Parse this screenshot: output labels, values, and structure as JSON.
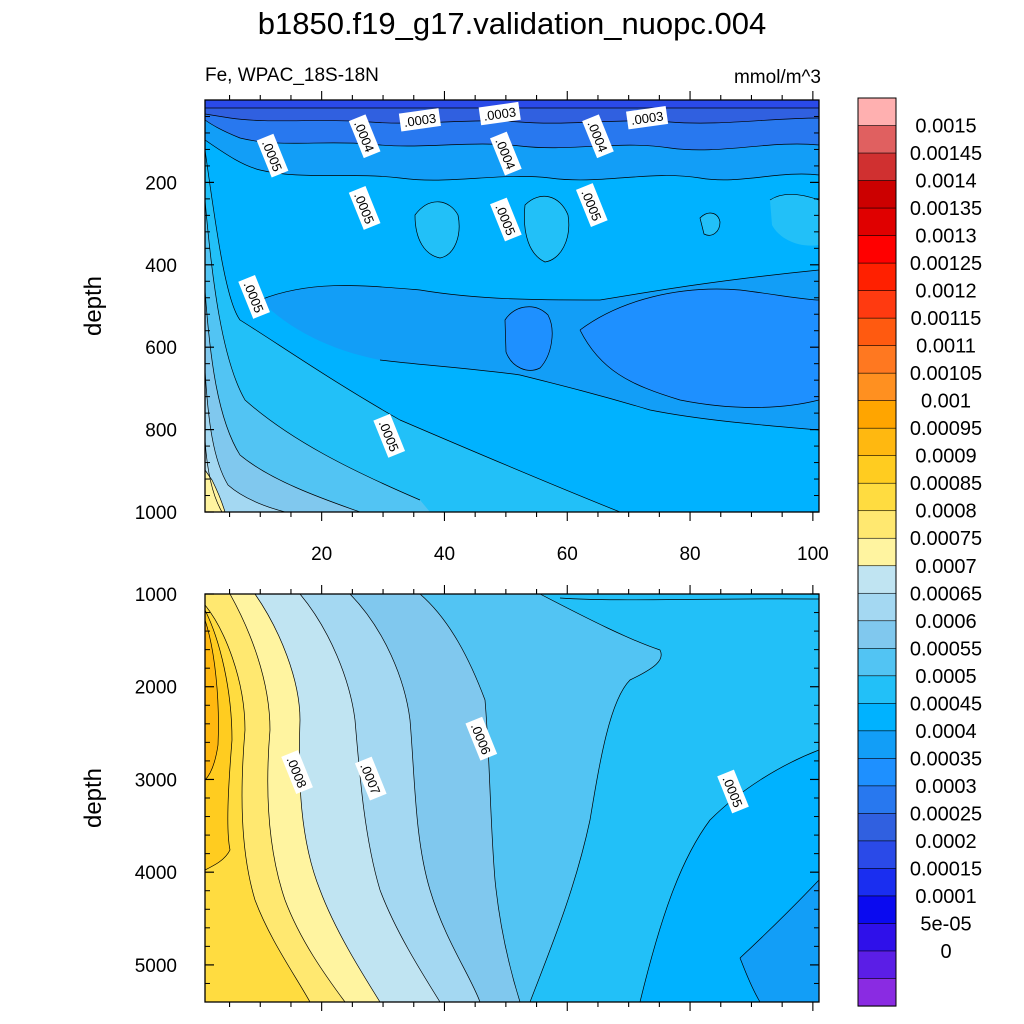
{
  "title": "b1850.f19_g17.validation_nuopc.004",
  "variable_label": "Fe, WPAC_18S-18N",
  "units_label": "mmol/m^3",
  "colors": {
    "levels": [
      "#8a2be2",
      "#5b1ee6",
      "#2f10ea",
      "#0a0af0",
      "#1a2ef0",
      "#2a4ae8",
      "#3060e0",
      "#2878ef",
      "#1e90ff",
      "#129ef7",
      "#00b2ff",
      "#22c0f8",
      "#52c4f3",
      "#80c8ee",
      "#a4d8f2",
      "#c0e4f2",
      "#fff4a0",
      "#ffe870",
      "#ffdc40",
      "#ffcc20",
      "#ffb810",
      "#ffa500",
      "#ff9020",
      "#ff7820",
      "#ff5a10",
      "#ff3a10",
      "#ff2000",
      "#ff0000",
      "#e00000",
      "#cc0000",
      "#d03030",
      "#e06060",
      "#ffb0b0"
    ]
  },
  "chart_data": [
    {
      "type": "heatmap",
      "panel": "upper",
      "xlabel": "",
      "ylabel": "depth",
      "xlim": [
        1,
        101
      ],
      "ylim": [
        0,
        1000
      ],
      "y_reversed": true,
      "xticks": [
        20,
        40,
        60,
        80,
        100
      ],
      "yticks": [
        200,
        400,
        600,
        800,
        1000
      ],
      "contour_labels": [
        {
          "text": ".0003",
          "x": 36,
          "y": 48
        },
        {
          "text": ".0003",
          "x": 49,
          "y": 33
        },
        {
          "text": ".0003",
          "x": 73,
          "y": 43
        },
        {
          "text": ".0004",
          "x": 27,
          "y": 88
        },
        {
          "text": ".0004",
          "x": 50,
          "y": 130
        },
        {
          "text": ".0004",
          "x": 65,
          "y": 88
        },
        {
          "text": ".0005",
          "x": 12,
          "y": 135
        },
        {
          "text": ".0005",
          "x": 27,
          "y": 262
        },
        {
          "text": ".0005",
          "x": 50,
          "y": 290
        },
        {
          "text": ".0005",
          "x": 64,
          "y": 255
        },
        {
          "text": ".0005",
          "x": 9,
          "y": 478
        },
        {
          "text": ".0005",
          "x": 31,
          "y": 815
        }
      ]
    },
    {
      "type": "heatmap",
      "panel": "lower",
      "xlabel": "",
      "ylabel": "depth",
      "xlim": [
        1,
        101
      ],
      "ylim": [
        1000,
        5400
      ],
      "y_reversed": true,
      "yticks": [
        1000,
        2000,
        3000,
        4000,
        5000
      ],
      "contour_labels": [
        {
          "text": ".0008",
          "x": 16,
          "y": 2920
        },
        {
          "text": ".0007",
          "x": 28,
          "y": 2990
        },
        {
          "text": ".0006",
          "x": 46,
          "y": 2560
        },
        {
          "text": ".0005",
          "x": 87,
          "y": 3130
        }
      ]
    }
  ],
  "colorbar": {
    "labels": [
      "0.0015",
      "0.00145",
      "0.0014",
      "0.00135",
      "0.0013",
      "0.00125",
      "0.0012",
      "0.00115",
      "0.0011",
      "0.00105",
      "0.001",
      "0.00095",
      "0.0009",
      "0.00085",
      "0.0008",
      "0.00075",
      "0.0007",
      "0.00065",
      "0.0006",
      "0.00055",
      "0.0005",
      "0.00045",
      "0.0004",
      "0.00035",
      "0.0003",
      "0.00025",
      "0.0002",
      "0.00015",
      "0.0001",
      "5e-05",
      "0"
    ]
  }
}
